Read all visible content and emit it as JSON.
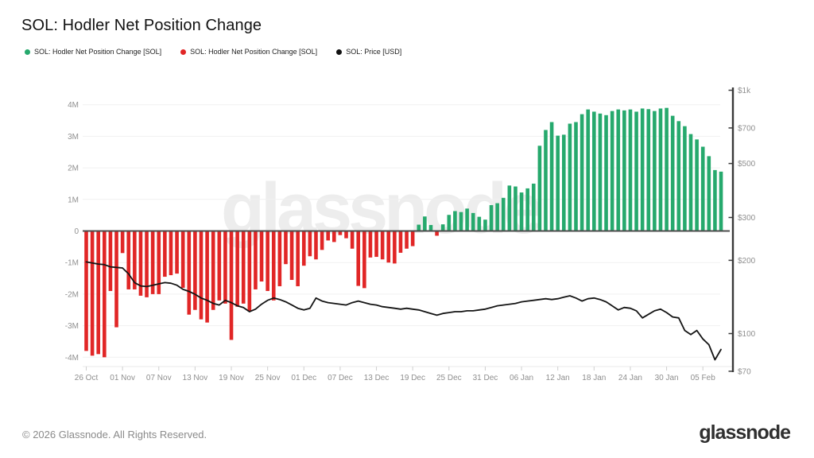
{
  "title": "SOL: Hodler Net Position Change",
  "legend": [
    {
      "label": "SOL: Hodler Net Position Change [SOL]",
      "color": "#26a96d"
    },
    {
      "label": "SOL: Hodler Net Position Change [SOL]",
      "color": "#e12626"
    },
    {
      "label": "SOL: Price [USD]",
      "color": "#111111"
    }
  ],
  "watermark": "glassnode",
  "footer": {
    "copyright": "© 2026 Glassnode. All Rights Reserved.",
    "logo": "glassnode"
  },
  "chart_data": {
    "type": "bar",
    "title": "SOL: Hodler Net Position Change",
    "grid": "horizontal-light",
    "legend_position": "top-left",
    "left_axis": {
      "unit": "SOL (millions)",
      "range": [
        -4.35,
        4.35
      ],
      "ticks": [
        {
          "value": 4,
          "label": "4M"
        },
        {
          "value": 3,
          "label": "3M"
        },
        {
          "value": 2,
          "label": "2M"
        },
        {
          "value": 1,
          "label": "1M"
        },
        {
          "value": 0,
          "label": "0"
        },
        {
          "value": -1,
          "label": "-1M"
        },
        {
          "value": -2,
          "label": "-2M"
        },
        {
          "value": -3,
          "label": "-3M"
        },
        {
          "value": -4,
          "label": "-4M"
        }
      ]
    },
    "right_axis": {
      "unit": "USD",
      "scale": "log",
      "range": [
        70,
        1000
      ],
      "ticks": [
        {
          "value": 1000,
          "label": "$1k"
        },
        {
          "value": 700,
          "label": "$700"
        },
        {
          "value": 500,
          "label": "$500"
        },
        {
          "value": 300,
          "label": "$300"
        },
        {
          "value": 200,
          "label": "$200"
        },
        {
          "value": 100,
          "label": "$100"
        },
        {
          "value": 70,
          "label": "$70"
        }
      ]
    },
    "x_tick_step": 6,
    "x_tick_labels": [
      "26 Oct",
      "01 Nov",
      "07 Nov",
      "13 Nov",
      "19 Nov",
      "25 Nov",
      "01 Dec",
      "07 Dec",
      "13 Dec",
      "19 Dec",
      "25 Dec",
      "31 Dec",
      "06 Jan",
      "12 Jan",
      "18 Jan",
      "24 Jan",
      "30 Jan",
      "05 Feb"
    ],
    "dates": [
      "26 Oct",
      "27 Oct",
      "28 Oct",
      "29 Oct",
      "30 Oct",
      "31 Oct",
      "01 Nov",
      "02 Nov",
      "03 Nov",
      "04 Nov",
      "05 Nov",
      "06 Nov",
      "07 Nov",
      "08 Nov",
      "09 Nov",
      "10 Nov",
      "11 Nov",
      "12 Nov",
      "13 Nov",
      "14 Nov",
      "15 Nov",
      "16 Nov",
      "17 Nov",
      "18 Nov",
      "19 Nov",
      "20 Nov",
      "21 Nov",
      "22 Nov",
      "23 Nov",
      "24 Nov",
      "25 Nov",
      "26 Nov",
      "27 Nov",
      "28 Nov",
      "29 Nov",
      "30 Nov",
      "01 Dec",
      "02 Dec",
      "03 Dec",
      "04 Dec",
      "05 Dec",
      "06 Dec",
      "07 Dec",
      "08 Dec",
      "09 Dec",
      "10 Dec",
      "11 Dec",
      "12 Dec",
      "13 Dec",
      "14 Dec",
      "15 Dec",
      "16 Dec",
      "17 Dec",
      "18 Dec",
      "19 Dec",
      "20 Dec",
      "21 Dec",
      "22 Dec",
      "23 Dec",
      "24 Dec",
      "25 Dec",
      "26 Dec",
      "27 Dec",
      "28 Dec",
      "29 Dec",
      "30 Dec",
      "31 Dec",
      "01 Jan",
      "02 Jan",
      "03 Jan",
      "04 Jan",
      "05 Jan",
      "06 Jan",
      "07 Jan",
      "08 Jan",
      "09 Jan",
      "10 Jan",
      "11 Jan",
      "12 Jan",
      "13 Jan",
      "14 Jan",
      "15 Jan",
      "16 Jan",
      "17 Jan",
      "18 Jan",
      "19 Jan",
      "20 Jan",
      "21 Jan",
      "22 Jan",
      "23 Jan",
      "24 Jan",
      "25 Jan",
      "26 Jan",
      "27 Jan",
      "28 Jan",
      "29 Jan",
      "30 Jan",
      "31 Jan",
      "01 Feb",
      "02 Feb",
      "03 Feb",
      "04 Feb",
      "05 Feb",
      "06 Feb",
      "07 Feb",
      "08 Feb"
    ],
    "series": [
      {
        "name": "SOL: Hodler Net Position Change [SOL]",
        "type": "bar",
        "axis": "left",
        "unit": "millions of SOL",
        "positive_color": "#26a96d",
        "negative_color": "#e12626",
        "values": [
          -3.8,
          -3.95,
          -3.9,
          -4.0,
          -1.9,
          -3.05,
          -0.7,
          -1.85,
          -1.85,
          -2.05,
          -2.1,
          -2.0,
          -2.0,
          -1.45,
          -1.4,
          -1.35,
          -1.8,
          -2.65,
          -2.5,
          -2.8,
          -2.9,
          -2.5,
          -2.2,
          -2.3,
          -3.45,
          -2.4,
          -2.3,
          -2.55,
          -1.85,
          -1.6,
          -1.9,
          -2.2,
          -1.75,
          -1.05,
          -1.55,
          -1.75,
          -1.1,
          -0.8,
          -0.9,
          -0.6,
          -0.3,
          -0.35,
          -0.13,
          -0.23,
          -0.56,
          -1.74,
          -1.81,
          -0.84,
          -0.82,
          -0.9,
          -1.0,
          -1.03,
          -0.69,
          -0.56,
          -0.48,
          0.2,
          0.46,
          0.19,
          -0.15,
          0.21,
          0.51,
          0.63,
          0.6,
          0.71,
          0.57,
          0.45,
          0.36,
          0.82,
          0.88,
          1.05,
          1.44,
          1.41,
          1.22,
          1.35,
          1.5,
          2.7,
          3.2,
          3.45,
          3.02,
          3.05,
          3.4,
          3.45,
          3.7,
          3.85,
          3.78,
          3.72,
          3.67,
          3.8,
          3.85,
          3.82,
          3.85,
          3.78,
          3.88,
          3.86,
          3.8,
          3.88,
          3.9,
          3.65,
          3.48,
          3.32,
          3.07,
          2.9,
          2.67,
          2.37,
          1.93,
          1.88
        ]
      },
      {
        "name": "SOL: Price [USD]",
        "type": "line",
        "axis": "right",
        "unit": "USD",
        "color": "#141414",
        "values": [
          197,
          195,
          193,
          192,
          188,
          187,
          186,
          176,
          162,
          157,
          156,
          158,
          160,
          162,
          161,
          158,
          152,
          149,
          145,
          140,
          137,
          133,
          131,
          137,
          134,
          130,
          128,
          123,
          126,
          132,
          137,
          140,
          138,
          135,
          131,
          127,
          125,
          127,
          140,
          136,
          134,
          133,
          132,
          131,
          134,
          136,
          134,
          132,
          131,
          129,
          128,
          127,
          126,
          127,
          126,
          125,
          123,
          121,
          119,
          121,
          122,
          123,
          123,
          124,
          124,
          125,
          126,
          128,
          130,
          131,
          132,
          133,
          135,
          136,
          137,
          138,
          139,
          138,
          139,
          141,
          143,
          140,
          136,
          139,
          140,
          138,
          135,
          130,
          125,
          128,
          127,
          124,
          116,
          120,
          124,
          126,
          122,
          117,
          116,
          103,
          99,
          103,
          95,
          90,
          78,
          86
        ]
      }
    ]
  }
}
